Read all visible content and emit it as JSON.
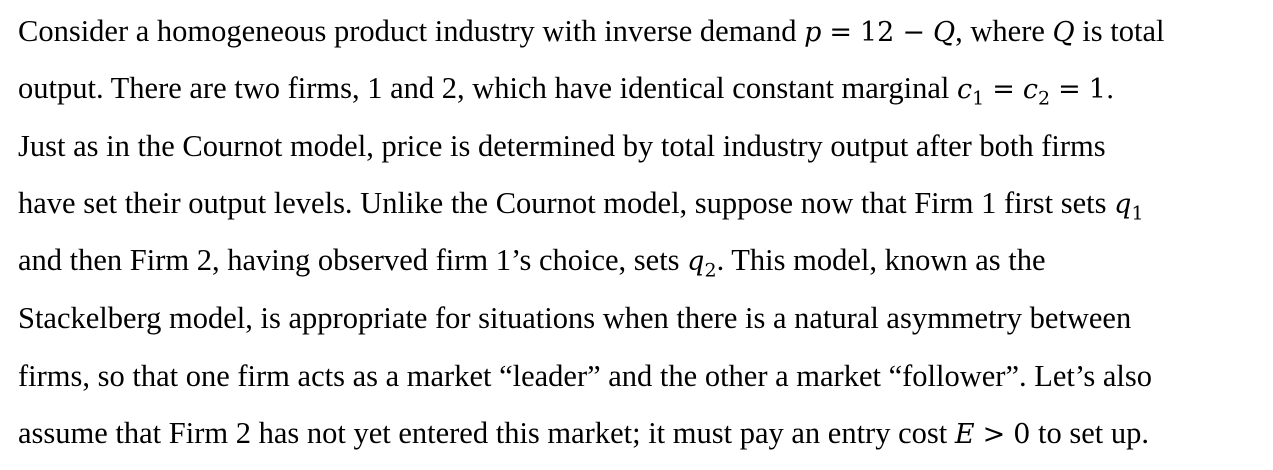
{
  "paragraph": {
    "line1": {
      "text_a": "Consider a homogeneous product industry with inverse demand ",
      "demand_lhs": "p",
      "equals": "=",
      "demand_const": "12",
      "minus": "−",
      "demand_var": "Q",
      "text_b": ", where ",
      "var_Q": "Q",
      "text_c": " is total"
    },
    "line2": {
      "text_a": "output. There are two firms, 1 and 2, which have identical constant marginal ",
      "c_symbol": "c",
      "c1_sub": "1",
      "equals": "=",
      "c2_sub": "2",
      "cost_value": "1",
      "period": "."
    },
    "line3": {
      "text": "Just as in the Cournot model, price is determined by total industry output after both firms"
    },
    "line4": {
      "text_a": "have set their output levels. Unlike the Cournot model, suppose now that Firm 1 first sets ",
      "q_symbol": "q",
      "q1_sub": "1"
    },
    "line5": {
      "text_a": "and then Firm 2, having observed firm 1’s choice, sets ",
      "q_symbol": "q",
      "q2_sub": "2",
      "text_b": ". This model, known as the"
    },
    "line6": {
      "text": "Stackelberg model, is appropriate for situations when there is a natural asymmetry between"
    },
    "line7": {
      "text": "firms, so that one firm acts as a market “leader” and the other a market “follower”. Let’s also"
    },
    "line8": {
      "text_a": "assume that Firm 2 has not yet entered this market; it must pay an entry cost ",
      "E_symbol": "E",
      "greater": ">",
      "zero": "0",
      "text_b": " to set up."
    }
  }
}
